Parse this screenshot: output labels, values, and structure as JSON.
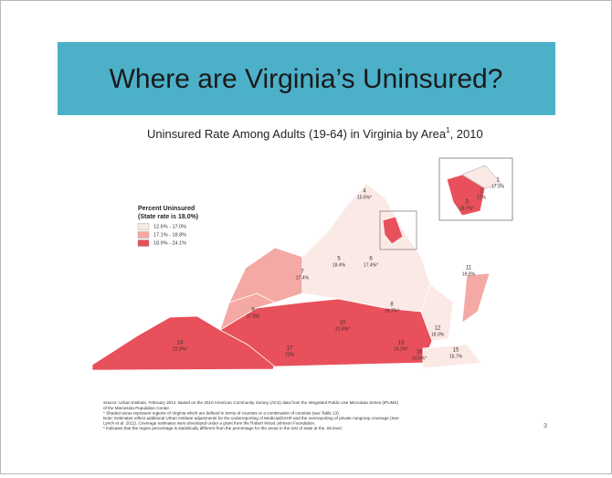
{
  "title": "Where are Virginia’s Uninsured?",
  "map": {
    "title": "Uninsured Rate Among Adults (19-64) in Virginia by Area",
    "title_footnote": "1",
    "title_suffix": ", 2010",
    "legend": {
      "title": "Percent Uninsured",
      "subtitle": "(State rate is 18.0%)",
      "entries": [
        {
          "label": "12.6% - 17.0%",
          "color": "#fbe9e6"
        },
        {
          "label": "17.1% - 18.8%",
          "color": "#f4a9a4"
        },
        {
          "label": "18.9% - 24.1%",
          "color": "#e8505b"
        }
      ]
    },
    "regions": [
      {
        "number": "1",
        "rate": "17.3%"
      },
      {
        "number": "2",
        "rate": "17%"
      },
      {
        "number": "3",
        "rate": "18.7%*"
      },
      {
        "number": "4",
        "rate": "15.6%*"
      },
      {
        "number": "5",
        "rate": "18.4%"
      },
      {
        "number": "6",
        "rate": "17.4%*"
      },
      {
        "number": "7",
        "rate": "17.4%"
      },
      {
        "number": "8",
        "rate": "16.7%*"
      },
      {
        "number": "9",
        "rate": "17.8%"
      },
      {
        "number": "10",
        "rate": "21.6%*"
      },
      {
        "number": "11",
        "rate": "18.8%"
      },
      {
        "number": "12",
        "rate": "18.0%"
      },
      {
        "number": "13",
        "rate": "24.1%*"
      },
      {
        "number": "14",
        "rate": "22.0%*"
      },
      {
        "number": "15",
        "rate": "16.7%"
      },
      {
        "number": "16",
        "rate": "14.5%*"
      },
      {
        "number": "17",
        "rate": "23%"
      }
    ]
  },
  "notes": [
    "Source: Urban Institute, February 2012. Based on the 2010 American Community Survey (ACS) data from the Integrated Public Use Microdata Series (IPUMS)",
    "of the Minnesota Population Center.",
    "* Shaded areas represent regions of Virginia which are defined in terms of counties or a combination of counties (see Table 13).",
    "Note: Estimates reflect additional Urban Institute adjustments for the underreporting of Medicaid/CHIP and the overreporting of private nongroup coverage (See",
    "Lynch et al. 2011). Coverage estimates were developed under a grant from the Robert Wood Johnson Foundation.",
    "* Indicates that the region percentage is statistically different from the percentage for the areas in the rest of state at the .05 level."
  ],
  "page_number": "3"
}
